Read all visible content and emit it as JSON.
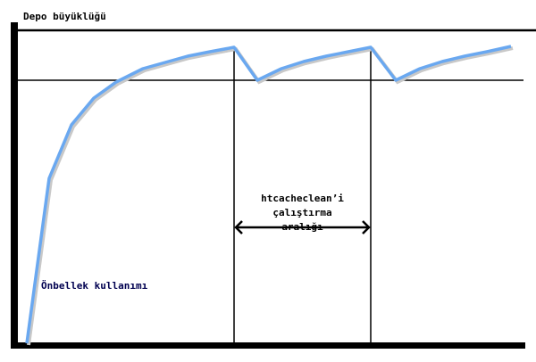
{
  "diagram": {
    "y_axis_label": "Depo büyüklüğü",
    "interval_label": [
      "htcacheclean’i",
      "çalıştırma",
      "aralığı"
    ],
    "curve_label": "Önbellek kullanımı",
    "colors": {
      "curve": "#6aa8f0",
      "axes": "#000000",
      "curve_label": "#000050"
    }
  }
}
